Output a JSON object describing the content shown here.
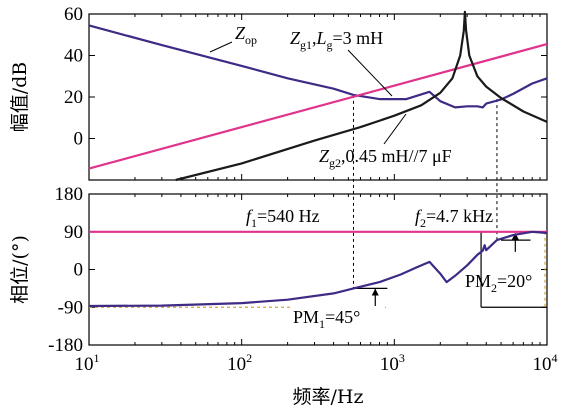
{
  "colors": {
    "zop": "#3f2a86",
    "zg1": "#e0338c",
    "zg2": "#1a1a1a",
    "pm_fill": "#ffffff",
    "dash": "#000000",
    "orange_dash": "#d8a43c"
  },
  "chart_data": [
    {
      "type": "line",
      "panel": "magnitude",
      "ylabel": "幅值/dB",
      "ylim": [
        -20,
        60
      ],
      "xscale": "log",
      "xlim": [
        10,
        10000
      ],
      "yticks": [
        "60",
        "40",
        "20",
        "0"
      ],
      "series": [
        {
          "name": "Zop",
          "color": "#3f2a86",
          "points": [
            [
              10,
              54.5
            ],
            [
              30,
              45
            ],
            [
              100,
              35
            ],
            [
              200,
              29
            ],
            [
              400,
              24
            ],
            [
              540,
              21
            ],
            [
              800,
              19
            ],
            [
              1200,
              19
            ],
            [
              1700,
              22.5
            ],
            [
              2000,
              18
            ],
            [
              2500,
              15
            ],
            [
              3000,
              15.5
            ],
            [
              3500,
              15.5
            ],
            [
              3800,
              15
            ],
            [
              4000,
              16.8
            ],
            [
              5000,
              18.8
            ],
            [
              6000,
              21.5
            ],
            [
              8000,
              26.5
            ],
            [
              10000,
              29
            ]
          ]
        },
        {
          "name": "Zg1, Lg=3 mH",
          "color": "#e0338c",
          "points": [
            [
              10,
              -14.5
            ],
            [
              10000,
              45.5
            ]
          ]
        },
        {
          "name": "Zg2, 0.45 mH//7 µF",
          "color": "#1a1a1a",
          "points": [
            [
              37,
              -20
            ],
            [
              100,
              -12
            ],
            [
              300,
              -1
            ],
            [
              600,
              5.5
            ],
            [
              1000,
              11
            ],
            [
              1500,
              16
            ],
            [
              2000,
              22
            ],
            [
              2400,
              29
            ],
            [
              2700,
              40
            ],
            [
              2850,
              52
            ],
            [
              2900,
              61
            ],
            [
              2950,
              52
            ],
            [
              3100,
              40
            ],
            [
              3500,
              30
            ],
            [
              4000,
              25
            ],
            [
              5000,
              19.5
            ],
            [
              7000,
              13
            ],
            [
              10000,
              8
            ]
          ]
        }
      ],
      "labels": {
        "zop": {
          "main": "Z",
          "sub": "op"
        },
        "zg1": {
          "main": "Z",
          "sub": "g1",
          "rest": ",",
          "l": "L",
          "lsub": "g",
          "tail": "=3 mH"
        },
        "zg2": {
          "main": "Z",
          "sub": "g2",
          "tail": ",0.45 mH//7 μF"
        }
      }
    },
    {
      "type": "line",
      "panel": "phase",
      "ylabel": "相位/(°)",
      "xlabel": "频率/Hz",
      "ylim": [
        -180,
        180
      ],
      "xscale": "log",
      "xlim": [
        10,
        10000
      ],
      "yticks": [
        "180",
        "90",
        "0",
        "-90",
        "-180"
      ],
      "xticks": [
        {
          "base": "10",
          "exp": "1"
        },
        {
          "base": "10",
          "exp": "2"
        },
        {
          "base": "10",
          "exp": "3"
        },
        {
          "base": "10",
          "exp": "4"
        }
      ],
      "series": [
        {
          "name": "Zop phase",
          "color": "#3f2a86",
          "points": [
            [
              10,
              -87
            ],
            [
              30,
              -86
            ],
            [
              100,
              -80
            ],
            [
              200,
              -72
            ],
            [
              400,
              -57
            ],
            [
              540,
              -45
            ],
            [
              800,
              -30
            ],
            [
              1100,
              -12
            ],
            [
              1400,
              5
            ],
            [
              1700,
              18
            ],
            [
              2000,
              -10
            ],
            [
              2200,
              -30
            ],
            [
              2500,
              -15
            ],
            [
              3000,
              10
            ],
            [
              3500,
              35
            ],
            [
              3800,
              45
            ],
            [
              3900,
              58
            ],
            [
              4000,
              46
            ],
            [
              4700,
              70
            ],
            [
              6000,
              82
            ],
            [
              8000,
              90
            ],
            [
              10000,
              87
            ]
          ]
        },
        {
          "name": "Zg1 phase",
          "color": "#e0338c",
          "points": [
            [
              10,
              90
            ],
            [
              10000,
              90
            ]
          ]
        }
      ],
      "annotations": {
        "f1": {
          "sym": "f",
          "sub": "1",
          "tail": "=540 Hz"
        },
        "f2": {
          "sym": "f",
          "sub": "2",
          "tail": "=4.7 kHz"
        },
        "pm1": {
          "label": "PM",
          "sub": "1",
          "tail": "=45°"
        },
        "pm2": {
          "label": "PM",
          "sub": "2",
          "tail": "=20°"
        }
      }
    }
  ]
}
